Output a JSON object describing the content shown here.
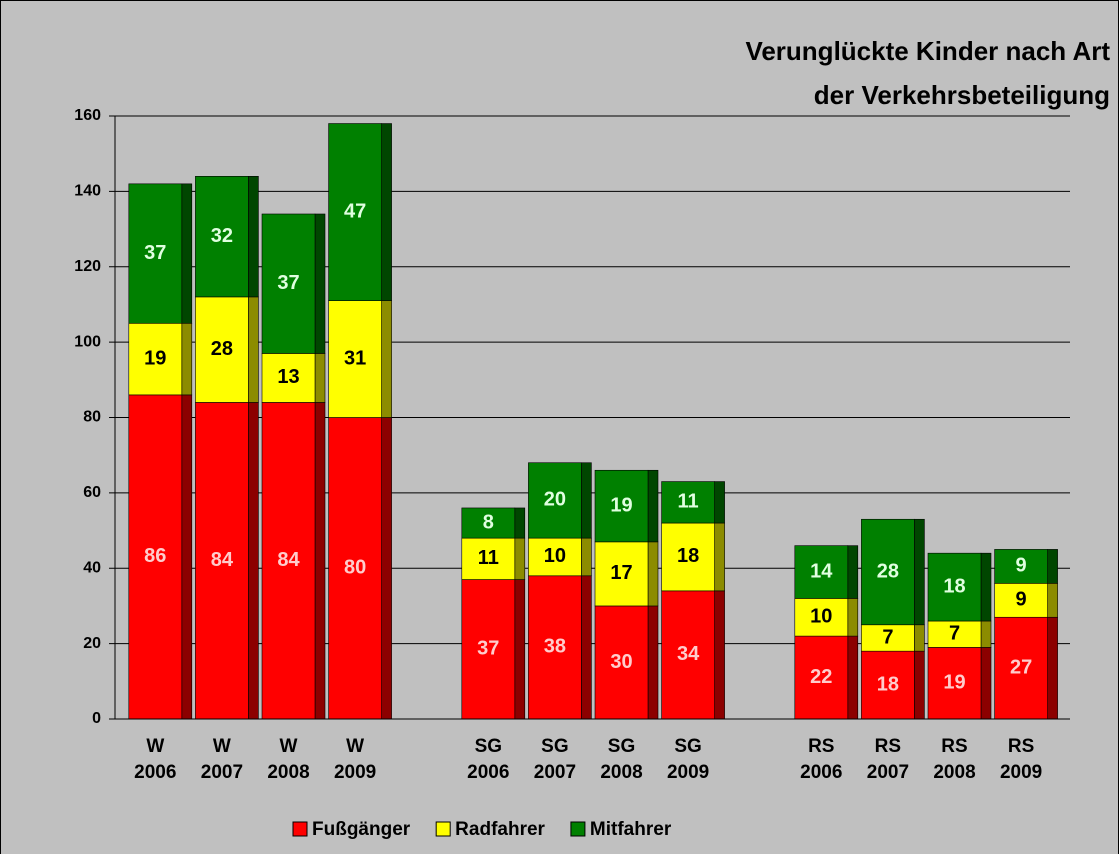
{
  "chart_data": {
    "type": "stacked-bar",
    "title": [
      "Verunglückte Kinder nach Art",
      "der Verkehrsbeteiligung"
    ],
    "categories": [
      "W 2006",
      "W 2007",
      "W 2008",
      "W 2009",
      null,
      "SG 2006",
      "SG 2007",
      "SG 2008",
      "SG 2009",
      null,
      "RS 2006",
      "RS 2007",
      "RS 2008",
      "RS 2009"
    ],
    "series": [
      {
        "name": "Fußgänger",
        "color": "#ff0000",
        "label_color": "#ffcccc",
        "values": [
          86,
          84,
          84,
          80,
          null,
          37,
          38,
          30,
          34,
          null,
          22,
          18,
          19,
          27
        ]
      },
      {
        "name": "Radfahrer",
        "color": "#ffff00",
        "label_color": "#000000",
        "values": [
          19,
          28,
          13,
          31,
          null,
          11,
          10,
          17,
          18,
          null,
          10,
          7,
          7,
          9
        ]
      },
      {
        "name": "Mitfahrer",
        "color": "#008000",
        "label_color": "#e0ffe0",
        "values": [
          37,
          32,
          37,
          47,
          null,
          8,
          20,
          19,
          11,
          null,
          14,
          28,
          18,
          9
        ]
      }
    ],
    "ylim": [
      0,
      160
    ],
    "yticks": [
      0,
      20,
      40,
      60,
      80,
      100,
      120,
      140,
      160
    ],
    "grid": true,
    "legend": "bottom"
  }
}
